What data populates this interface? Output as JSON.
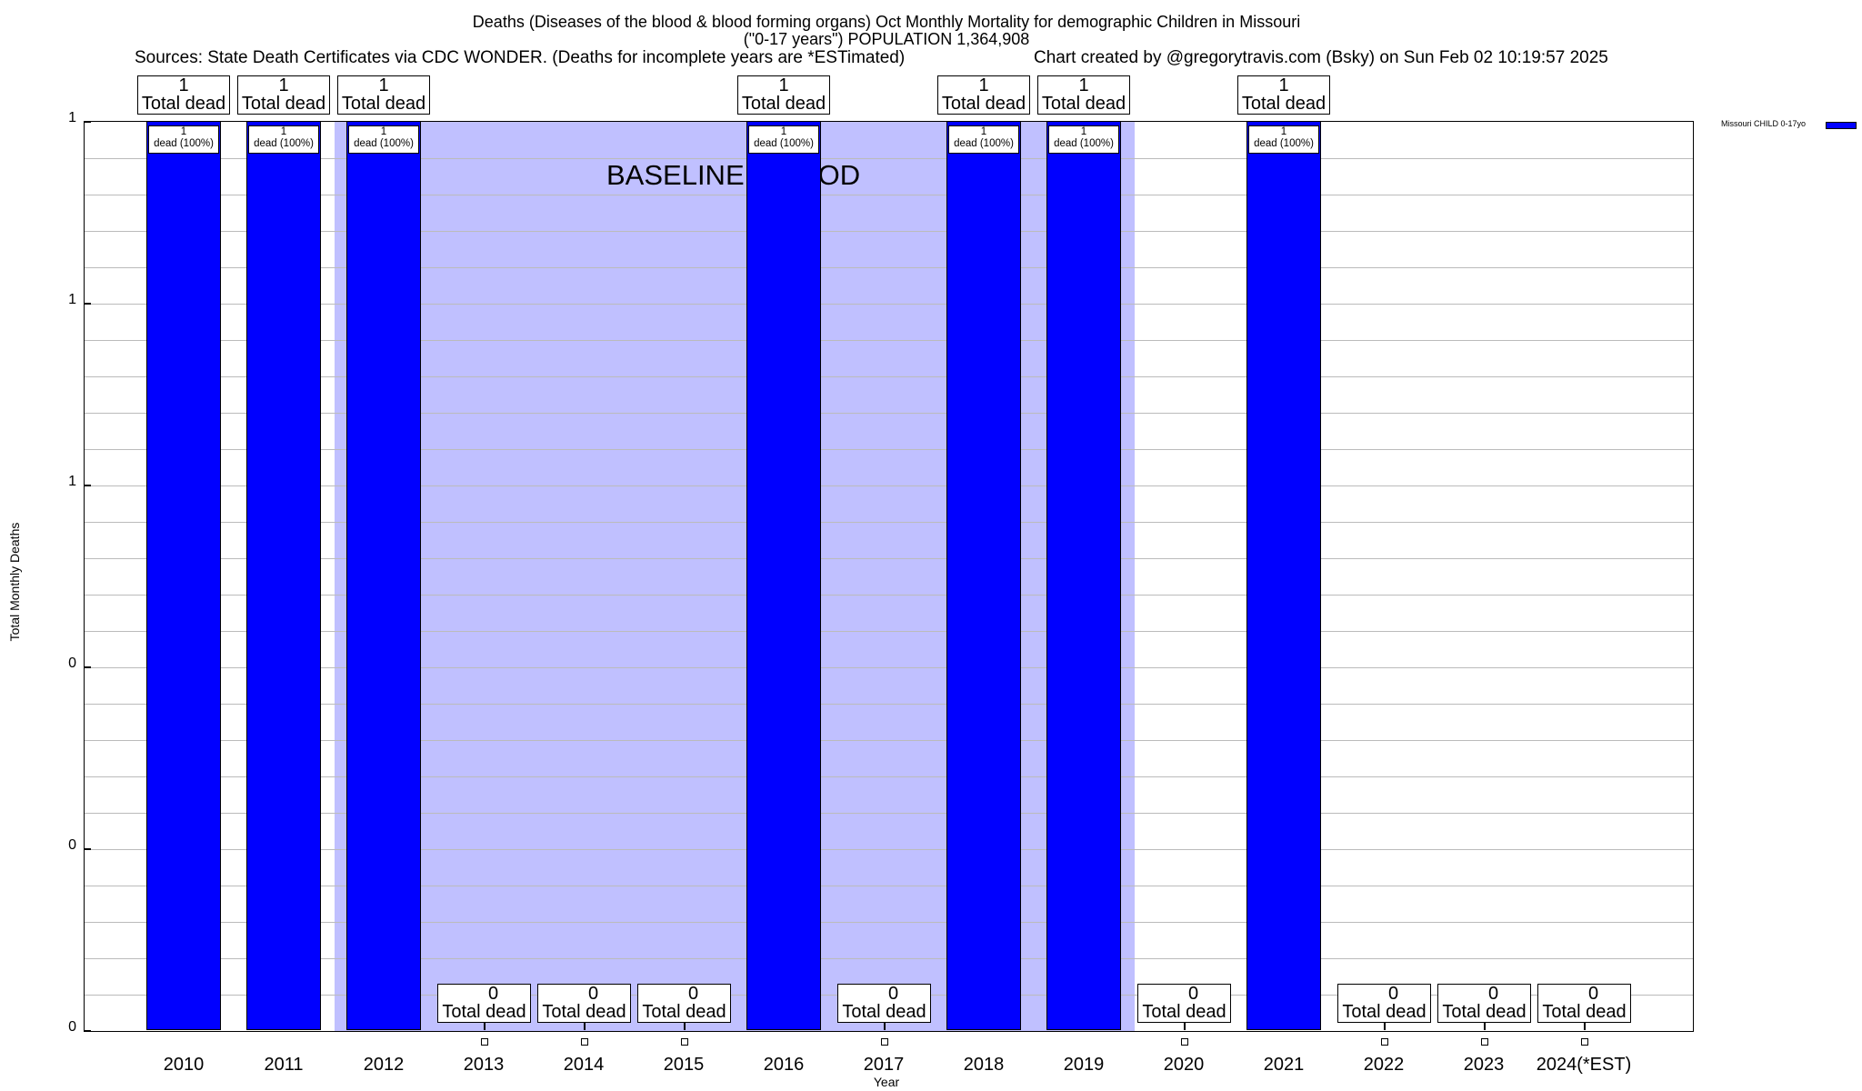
{
  "chart_data": {
    "type": "bar",
    "title": "Deaths (Diseases of the blood & blood forming organs) Oct Monthly Mortality for demographic Children in Missouri",
    "subtitle": "(\"0-17 years\") POPULATION 1,364,908",
    "sources": "Sources: State Death Certificates via CDC WONDER. (Deaths for incomplete years are *ESTimated)",
    "credit": "Chart created by @gregorytravis.com (Bsky) on Sun Feb 02 10:19:57 2025",
    "xlabel": "Year",
    "ylabel": "Total Monthly Deaths",
    "ylim": [
      0,
      1
    ],
    "yticks": [
      {
        "v": 1,
        "label": "1"
      },
      {
        "v": 0.8,
        "label": "1"
      },
      {
        "v": 0.6,
        "label": "1"
      },
      {
        "v": 0.4,
        "label": "0"
      },
      {
        "v": 0.2,
        "label": "0"
      },
      {
        "v": 0,
        "label": "0"
      }
    ],
    "categories": [
      "2010",
      "2011",
      "2012",
      "2013",
      "2014",
      "2015",
      "2016",
      "2017",
      "2018",
      "2019",
      "2020",
      "2021",
      "2022",
      "2023",
      "2024(*EST)"
    ],
    "series": [
      {
        "name": "Missouri CHILD 0-17yo",
        "color": "#0000ff",
        "values": [
          1,
          1,
          1,
          0,
          0,
          0,
          1,
          0,
          1,
          1,
          0,
          1,
          0,
          0,
          0
        ]
      }
    ],
    "total_label": "Total dead",
    "bar_label": "dead (100%)",
    "baseline": {
      "label": "BASELINE PERIOD",
      "from": "2011.5",
      "to": "2019.5",
      "color": "#c0c0ff"
    },
    "legend": "top-right",
    "grid": true
  }
}
